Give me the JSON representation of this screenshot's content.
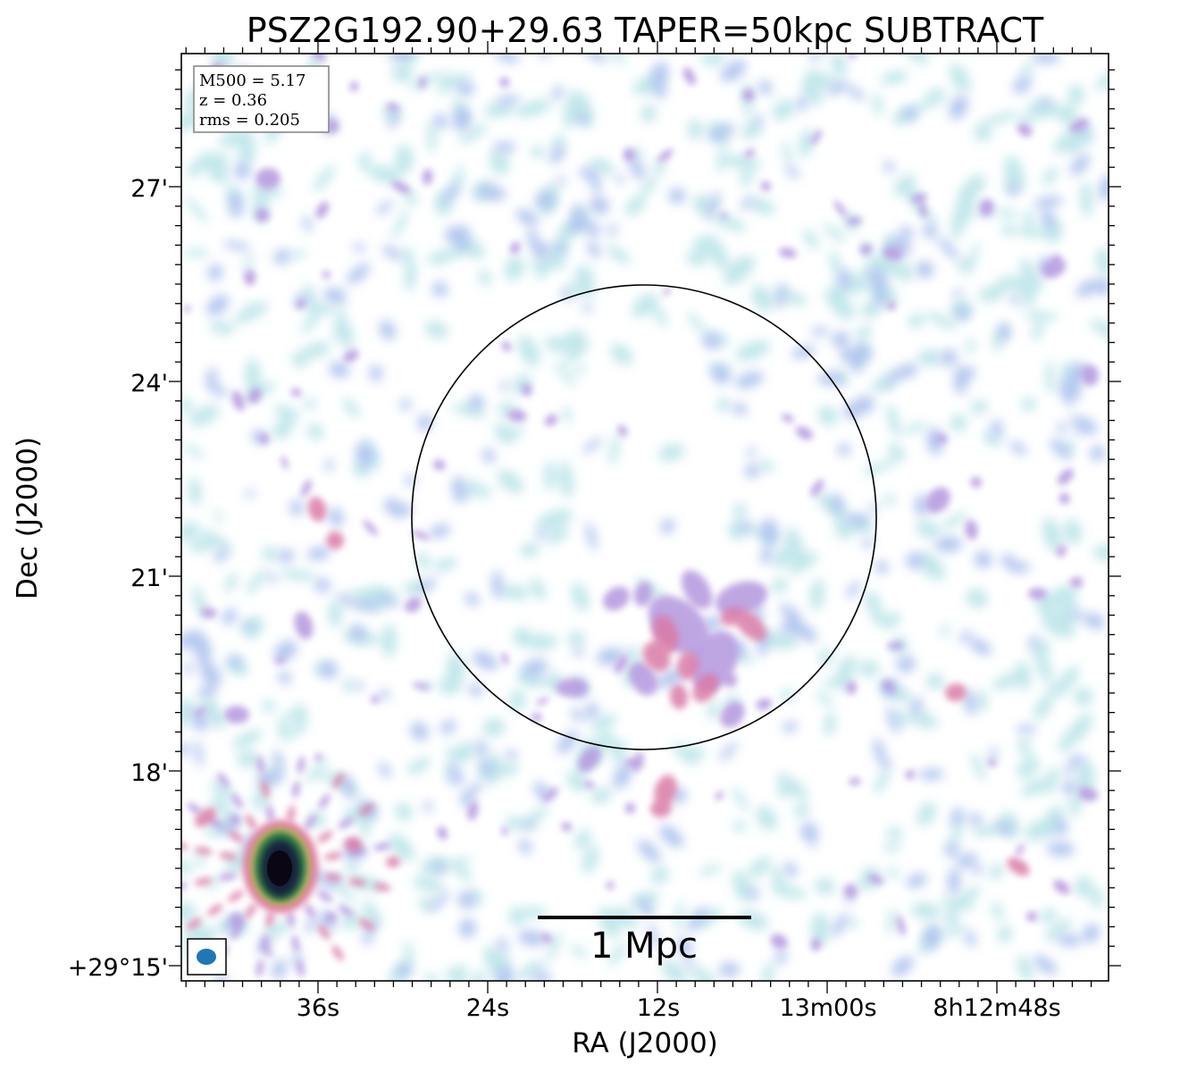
{
  "figure": {
    "title": "PSZ2G192.90+29.63 TAPER=50kpc SUBTRACT",
    "xlabel": "RA (J2000)",
    "ylabel": "Dec (J2000)",
    "ra_ticks": [
      "36s",
      "24s",
      "12s",
      "13m00s",
      "8h12m48s"
    ],
    "dec_ticks": [
      "27'",
      "24'",
      "21'",
      "18'",
      "+29°15'"
    ],
    "info_box": {
      "line1": "M500 = 5.17",
      "line2": "z = 0.36",
      "line3": "rms = 0.205"
    },
    "scalebar_label": "1 Mpc",
    "colors": {
      "faint": "#bfe6ea",
      "low": "#b0c4ee",
      "mid": "#b79ce0",
      "high": "#d97aa6",
      "source_core": "#1a0f2a",
      "beam": "#1f77b4"
    }
  }
}
